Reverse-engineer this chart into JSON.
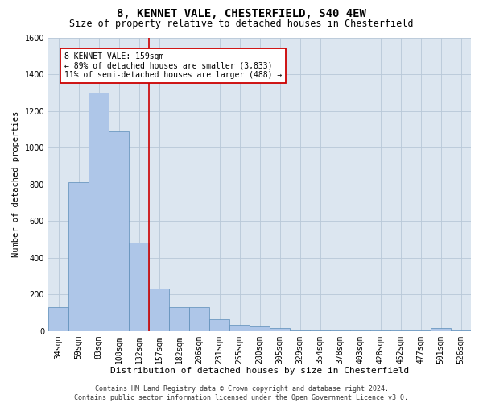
{
  "title": "8, KENNET VALE, CHESTERFIELD, S40 4EW",
  "subtitle": "Size of property relative to detached houses in Chesterfield",
  "xlabel": "Distribution of detached houses by size in Chesterfield",
  "ylabel": "Number of detached properties",
  "categories": [
    "34sqm",
    "59sqm",
    "83sqm",
    "108sqm",
    "132sqm",
    "157sqm",
    "182sqm",
    "206sqm",
    "231sqm",
    "255sqm",
    "280sqm",
    "305sqm",
    "329sqm",
    "354sqm",
    "378sqm",
    "403sqm",
    "428sqm",
    "452sqm",
    "477sqm",
    "501sqm",
    "526sqm"
  ],
  "values": [
    130,
    810,
    1300,
    1090,
    480,
    230,
    130,
    130,
    65,
    35,
    25,
    15,
    5,
    2,
    2,
    2,
    1,
    1,
    1,
    15,
    1
  ],
  "bar_color": "#aec6e8",
  "bar_edgecolor": "#5b8db8",
  "vline_index": 5,
  "vline_color": "#cc0000",
  "ylim": [
    0,
    1600
  ],
  "yticks": [
    0,
    200,
    400,
    600,
    800,
    1000,
    1200,
    1400,
    1600
  ],
  "annotation_text": "8 KENNET VALE: 159sqm\n← 89% of detached houses are smaller (3,833)\n11% of semi-detached houses are larger (488) →",
  "annotation_box_color": "#ffffff",
  "annotation_box_edgecolor": "#cc0000",
  "footer_line1": "Contains HM Land Registry data © Crown copyright and database right 2024.",
  "footer_line2": "Contains public sector information licensed under the Open Government Licence v3.0.",
  "bg_color": "#ffffff",
  "plot_bg_color": "#dce6f0",
  "grid_color": "#b8c8d8",
  "title_fontsize": 10,
  "subtitle_fontsize": 8.5,
  "ylabel_fontsize": 7.5,
  "xlabel_fontsize": 8,
  "tick_fontsize": 7,
  "annotation_fontsize": 7,
  "footer_fontsize": 6
}
